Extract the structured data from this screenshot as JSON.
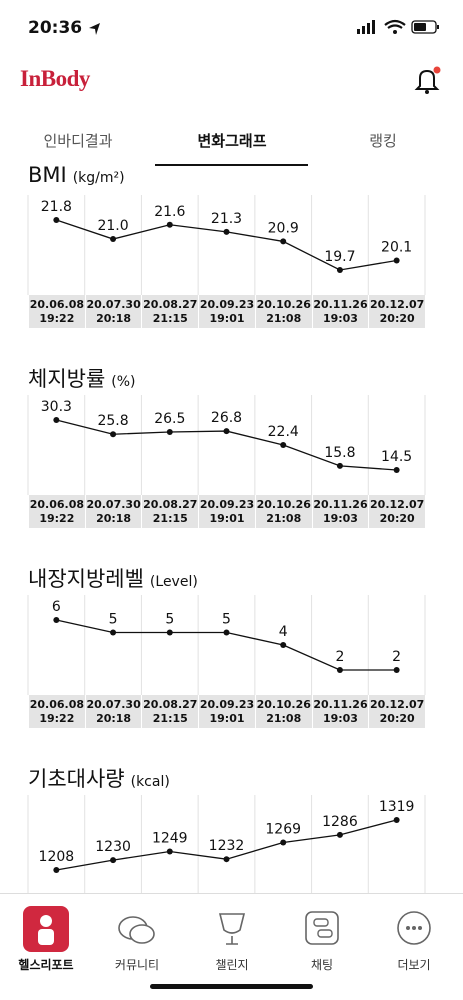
{
  "status_bar": {
    "time": "20:36"
  },
  "header": {
    "logo": "InBody"
  },
  "tabs": [
    "인바디결과",
    "변화그래프",
    "랭킹"
  ],
  "chart_data": [
    {
      "type": "line",
      "title": "BMI",
      "unit": "(kg/m²)",
      "color": "#111111",
      "categories": [
        "20.06.08\n19:22",
        "20.07.30\n20:18",
        "20.08.27\n21:15",
        "20.09.23\n19:01",
        "20.10.26\n21:08",
        "20.11.26\n19:03",
        "20.12.07\n20:20"
      ],
      "values": [
        21.8,
        21.0,
        21.6,
        21.3,
        20.9,
        19.7,
        20.1
      ],
      "value_labels": [
        "21.8",
        "21.0",
        "21.6",
        "21.3",
        "20.9",
        "19.7",
        "20.1"
      ]
    },
    {
      "type": "line",
      "title": "체지방률",
      "unit": "(%)",
      "color": "#111111",
      "categories": [
        "20.06.08\n19:22",
        "20.07.30\n20:18",
        "20.08.27\n21:15",
        "20.09.23\n19:01",
        "20.10.26\n21:08",
        "20.11.26\n19:03",
        "20.12.07\n20:20"
      ],
      "values": [
        30.3,
        25.8,
        26.5,
        26.8,
        22.4,
        15.8,
        14.5
      ]
    },
    {
      "type": "line",
      "title": "내장지방레벨",
      "unit": "(Level)",
      "color": "#111111",
      "categories": [
        "20.06.08\n19:22",
        "20.07.30\n20:18",
        "20.08.27\n21:15",
        "20.09.23\n19:01",
        "20.10.26\n21:08",
        "20.11.26\n19:03",
        "20.12.07\n20:20"
      ],
      "values": [
        6,
        5,
        5,
        5,
        4,
        2,
        2
      ]
    },
    {
      "type": "line",
      "title": "기초대사량",
      "unit": "(kcal)",
      "color": "#111111",
      "values": [
        1208,
        1230,
        1249,
        1232,
        1269,
        1286,
        1319
      ]
    }
  ],
  "nav": [
    "헬스리포트",
    "커뮤니티",
    "챌린지",
    "채팅",
    "더보기"
  ]
}
